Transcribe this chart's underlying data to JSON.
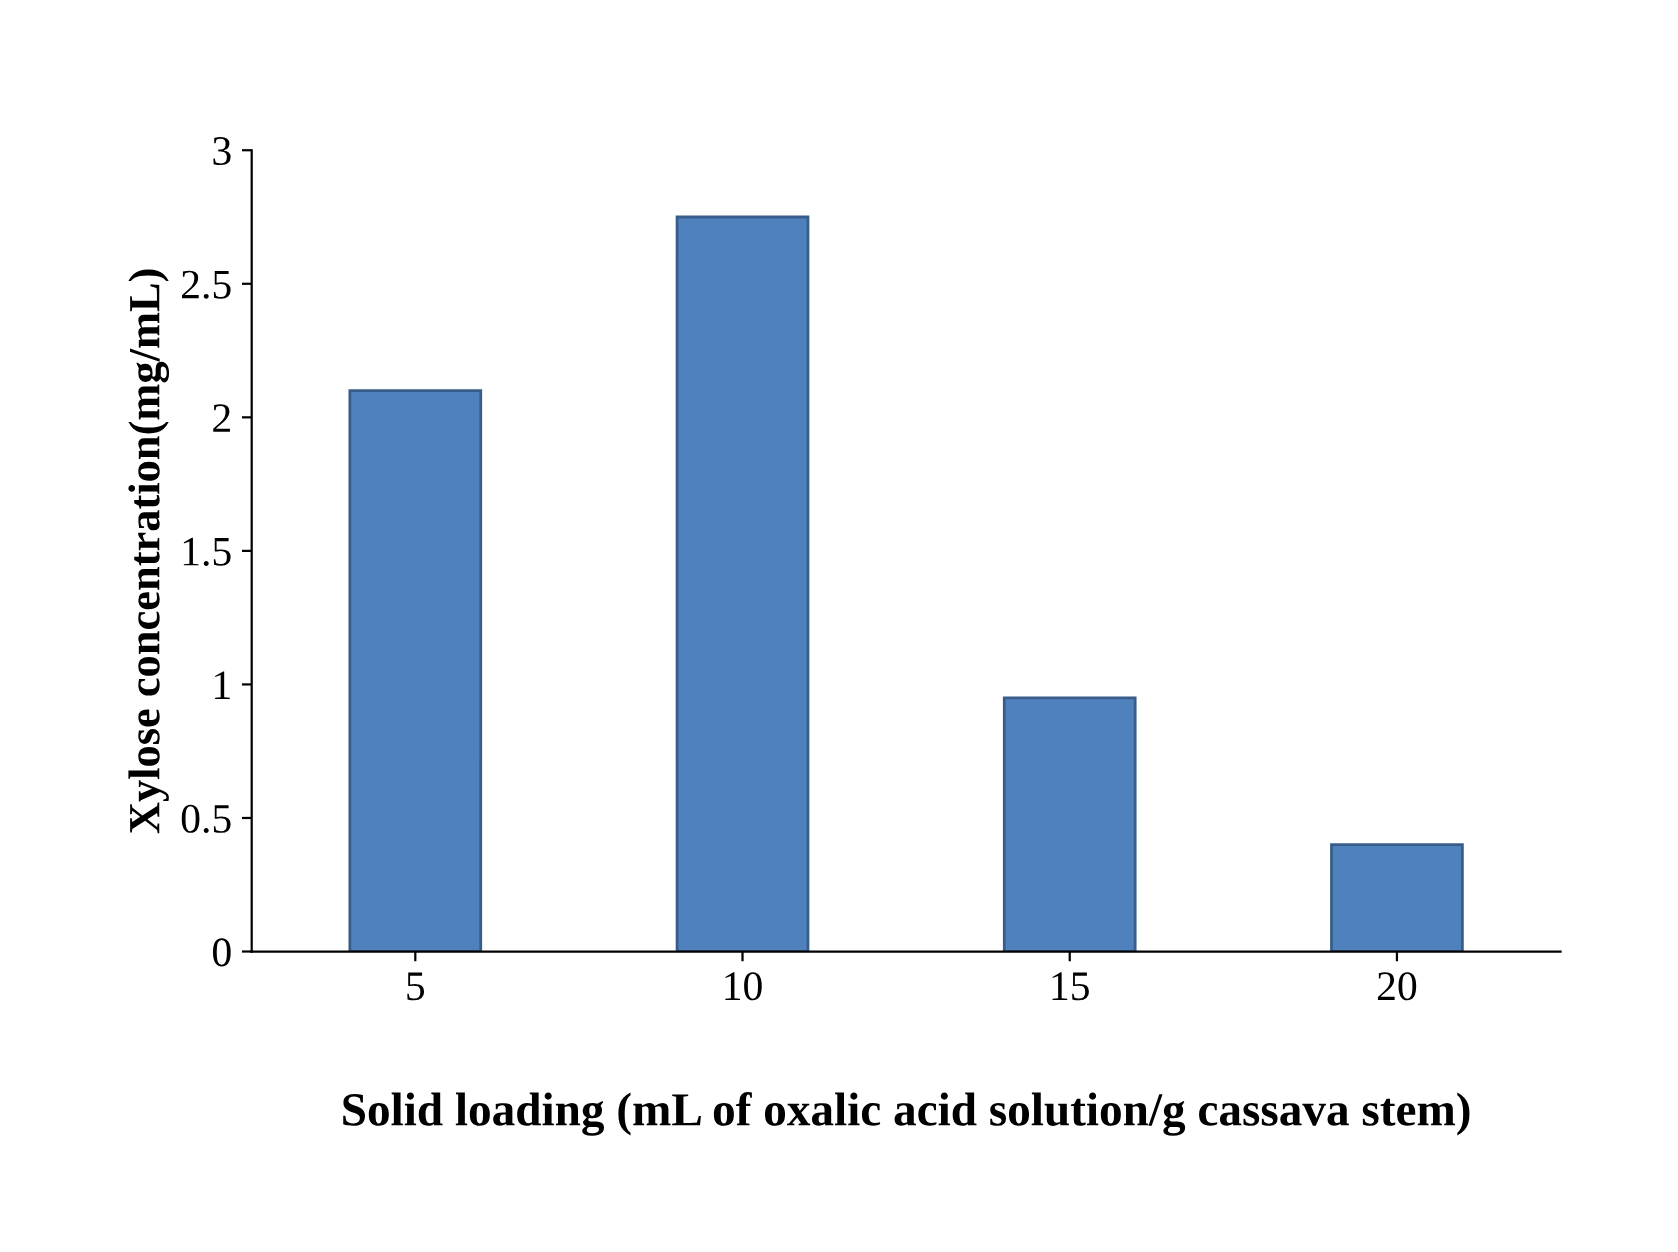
{
  "chart_data": {
    "type": "bar",
    "xlabel": "Solid loading (mL of oxalic acid solution/g cassava stem)",
    "ylabel": "Xylose concentration(mg/mL)",
    "categories": [
      "5",
      "10",
      "15",
      "20"
    ],
    "values": [
      2.1,
      2.75,
      0.95,
      0.4
    ],
    "color": "#4f81bd",
    "ylim": [
      0,
      3
    ],
    "yticks": [
      0,
      0.5,
      1,
      1.5,
      2,
      2.5,
      3
    ],
    "grid": false
  }
}
